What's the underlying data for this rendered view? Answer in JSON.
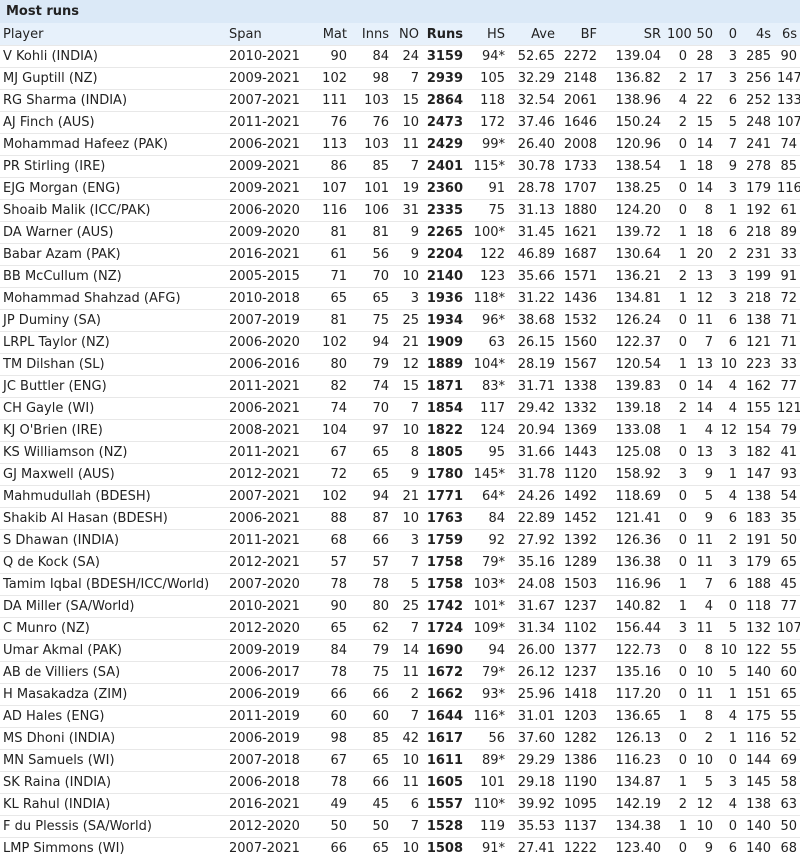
{
  "title": "Most runs",
  "columns": [
    "Player",
    "Span",
    "Mat",
    "Inns",
    "NO",
    "Runs",
    "HS",
    "Ave",
    "BF",
    "SR",
    "100",
    "50",
    "0",
    "4s",
    "6s"
  ],
  "rows": [
    [
      "V Kohli (INDIA)",
      "2010-2021",
      "90",
      "84",
      "24",
      "3159",
      "94*",
      "52.65",
      "2272",
      "139.04",
      "0",
      "28",
      "3",
      "285",
      "90"
    ],
    [
      "MJ Guptill (NZ)",
      "2009-2021",
      "102",
      "98",
      "7",
      "2939",
      "105",
      "32.29",
      "2148",
      "136.82",
      "2",
      "17",
      "3",
      "256",
      "147"
    ],
    [
      "RG Sharma (INDIA)",
      "2007-2021",
      "111",
      "103",
      "15",
      "2864",
      "118",
      "32.54",
      "2061",
      "138.96",
      "4",
      "22",
      "6",
      "252",
      "133"
    ],
    [
      "AJ Finch (AUS)",
      "2011-2021",
      "76",
      "76",
      "10",
      "2473",
      "172",
      "37.46",
      "1646",
      "150.24",
      "2",
      "15",
      "5",
      "248",
      "107"
    ],
    [
      "Mohammad Hafeez (PAK)",
      "2006-2021",
      "113",
      "103",
      "11",
      "2429",
      "99*",
      "26.40",
      "2008",
      "120.96",
      "0",
      "14",
      "7",
      "241",
      "74"
    ],
    [
      "PR Stirling (IRE)",
      "2009-2021",
      "86",
      "85",
      "7",
      "2401",
      "115*",
      "30.78",
      "1733",
      "138.54",
      "1",
      "18",
      "9",
      "278",
      "85"
    ],
    [
      "EJG Morgan (ENG)",
      "2009-2021",
      "107",
      "101",
      "19",
      "2360",
      "91",
      "28.78",
      "1707",
      "138.25",
      "0",
      "14",
      "3",
      "179",
      "116"
    ],
    [
      "Shoaib Malik (ICC/PAK)",
      "2006-2020",
      "116",
      "106",
      "31",
      "2335",
      "75",
      "31.13",
      "1880",
      "124.20",
      "0",
      "8",
      "1",
      "192",
      "61"
    ],
    [
      "DA Warner (AUS)",
      "2009-2020",
      "81",
      "81",
      "9",
      "2265",
      "100*",
      "31.45",
      "1621",
      "139.72",
      "1",
      "18",
      "6",
      "218",
      "89"
    ],
    [
      "Babar Azam (PAK)",
      "2016-2021",
      "61",
      "56",
      "9",
      "2204",
      "122",
      "46.89",
      "1687",
      "130.64",
      "1",
      "20",
      "2",
      "231",
      "33"
    ],
    [
      "BB McCullum (NZ)",
      "2005-2015",
      "71",
      "70",
      "10",
      "2140",
      "123",
      "35.66",
      "1571",
      "136.21",
      "2",
      "13",
      "3",
      "199",
      "91"
    ],
    [
      "Mohammad Shahzad (AFG)",
      "2010-2018",
      "65",
      "65",
      "3",
      "1936",
      "118*",
      "31.22",
      "1436",
      "134.81",
      "1",
      "12",
      "3",
      "218",
      "72"
    ],
    [
      "JP Duminy (SA)",
      "2007-2019",
      "81",
      "75",
      "25",
      "1934",
      "96*",
      "38.68",
      "1532",
      "126.24",
      "0",
      "11",
      "6",
      "138",
      "71"
    ],
    [
      "LRPL Taylor (NZ)",
      "2006-2020",
      "102",
      "94",
      "21",
      "1909",
      "63",
      "26.15",
      "1560",
      "122.37",
      "0",
      "7",
      "6",
      "121",
      "71"
    ],
    [
      "TM Dilshan (SL)",
      "2006-2016",
      "80",
      "79",
      "12",
      "1889",
      "104*",
      "28.19",
      "1567",
      "120.54",
      "1",
      "13",
      "10",
      "223",
      "33"
    ],
    [
      "JC Buttler (ENG)",
      "2011-2021",
      "82",
      "74",
      "15",
      "1871",
      "83*",
      "31.71",
      "1338",
      "139.83",
      "0",
      "14",
      "4",
      "162",
      "77"
    ],
    [
      "CH Gayle (WI)",
      "2006-2021",
      "74",
      "70",
      "7",
      "1854",
      "117",
      "29.42",
      "1332",
      "139.18",
      "2",
      "14",
      "4",
      "155",
      "121"
    ],
    [
      "KJ O'Brien (IRE)",
      "2008-2021",
      "104",
      "97",
      "10",
      "1822",
      "124",
      "20.94",
      "1369",
      "133.08",
      "1",
      "4",
      "12",
      "154",
      "79"
    ],
    [
      "KS Williamson (NZ)",
      "2011-2021",
      "67",
      "65",
      "8",
      "1805",
      "95",
      "31.66",
      "1443",
      "125.08",
      "0",
      "13",
      "3",
      "182",
      "41"
    ],
    [
      "GJ Maxwell (AUS)",
      "2012-2021",
      "72",
      "65",
      "9",
      "1780",
      "145*",
      "31.78",
      "1120",
      "158.92",
      "3",
      "9",
      "1",
      "147",
      "93"
    ],
    [
      "Mahmudullah (BDESH)",
      "2007-2021",
      "102",
      "94",
      "21",
      "1771",
      "64*",
      "24.26",
      "1492",
      "118.69",
      "0",
      "5",
      "4",
      "138",
      "54"
    ],
    [
      "Shakib Al Hasan (BDESH)",
      "2006-2021",
      "88",
      "87",
      "10",
      "1763",
      "84",
      "22.89",
      "1452",
      "121.41",
      "0",
      "9",
      "6",
      "183",
      "35"
    ],
    [
      "S Dhawan (INDIA)",
      "2011-2021",
      "68",
      "66",
      "3",
      "1759",
      "92",
      "27.92",
      "1392",
      "126.36",
      "0",
      "11",
      "2",
      "191",
      "50"
    ],
    [
      "Q de Kock (SA)",
      "2012-2021",
      "57",
      "57",
      "7",
      "1758",
      "79*",
      "35.16",
      "1289",
      "136.38",
      "0",
      "11",
      "3",
      "179",
      "65"
    ],
    [
      "Tamim Iqbal (BDESH/ICC/World)",
      "2007-2020",
      "78",
      "78",
      "5",
      "1758",
      "103*",
      "24.08",
      "1503",
      "116.96",
      "1",
      "7",
      "6",
      "188",
      "45"
    ],
    [
      "DA Miller (SA/World)",
      "2010-2021",
      "90",
      "80",
      "25",
      "1742",
      "101*",
      "31.67",
      "1237",
      "140.82",
      "1",
      "4",
      "0",
      "118",
      "77"
    ],
    [
      "C Munro (NZ)",
      "2012-2020",
      "65",
      "62",
      "7",
      "1724",
      "109*",
      "31.34",
      "1102",
      "156.44",
      "3",
      "11",
      "5",
      "132",
      "107"
    ],
    [
      "Umar Akmal (PAK)",
      "2009-2019",
      "84",
      "79",
      "14",
      "1690",
      "94",
      "26.00",
      "1377",
      "122.73",
      "0",
      "8",
      "10",
      "122",
      "55"
    ],
    [
      "AB de Villiers (SA)",
      "2006-2017",
      "78",
      "75",
      "11",
      "1672",
      "79*",
      "26.12",
      "1237",
      "135.16",
      "0",
      "10",
      "5",
      "140",
      "60"
    ],
    [
      "H Masakadza (ZIM)",
      "2006-2019",
      "66",
      "66",
      "2",
      "1662",
      "93*",
      "25.96",
      "1418",
      "117.20",
      "0",
      "11",
      "1",
      "151",
      "65"
    ],
    [
      "AD Hales (ENG)",
      "2011-2019",
      "60",
      "60",
      "7",
      "1644",
      "116*",
      "31.01",
      "1203",
      "136.65",
      "1",
      "8",
      "4",
      "175",
      "55"
    ],
    [
      "MS Dhoni (INDIA)",
      "2006-2019",
      "98",
      "85",
      "42",
      "1617",
      "56",
      "37.60",
      "1282",
      "126.13",
      "0",
      "2",
      "1",
      "116",
      "52"
    ],
    [
      "MN Samuels (WI)",
      "2007-2018",
      "67",
      "65",
      "10",
      "1611",
      "89*",
      "29.29",
      "1386",
      "116.23",
      "0",
      "10",
      "0",
      "144",
      "69"
    ],
    [
      "SK Raina (INDIA)",
      "2006-2018",
      "78",
      "66",
      "11",
      "1605",
      "101",
      "29.18",
      "1190",
      "134.87",
      "1",
      "5",
      "3",
      "145",
      "58"
    ],
    [
      "KL Rahul (INDIA)",
      "2016-2021",
      "49",
      "45",
      "6",
      "1557",
      "110*",
      "39.92",
      "1095",
      "142.19",
      "2",
      "12",
      "4",
      "138",
      "63"
    ],
    [
      "F du Plessis (SA/World)",
      "2012-2020",
      "50",
      "50",
      "7",
      "1528",
      "119",
      "35.53",
      "1137",
      "134.38",
      "1",
      "10",
      "0",
      "140",
      "50"
    ],
    [
      "LMP Simmons (WI)",
      "2007-2021",
      "66",
      "65",
      "10",
      "1508",
      "91*",
      "27.41",
      "1222",
      "123.40",
      "0",
      "9",
      "6",
      "140",
      "68"
    ]
  ]
}
